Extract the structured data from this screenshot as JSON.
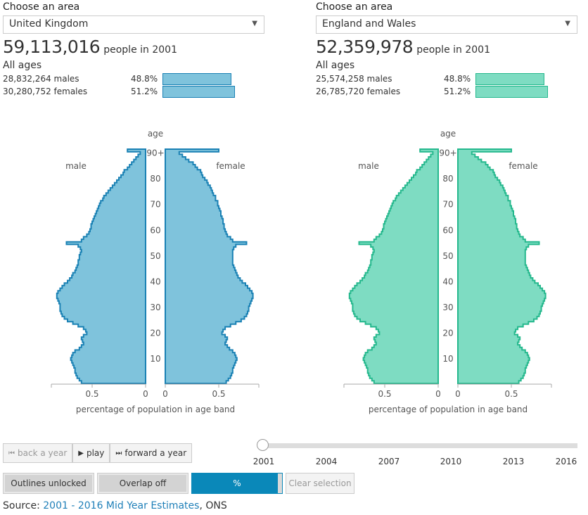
{
  "panels": [
    {
      "choose_label": "Choose an area",
      "area": "United Kingdom",
      "population": "59,113,016",
      "people_suffix": "people in 2001",
      "ages_label": "All ages",
      "males": "28,832,264 males",
      "males_pct": "48.8%",
      "females": "30,280,752 females",
      "females_pct": "51.2%",
      "fill": "#7fc3dc",
      "stroke": "#1a81b4"
    },
    {
      "choose_label": "Choose an area",
      "area": "England and Wales",
      "population": "52,359,978",
      "people_suffix": "people in 2001",
      "ages_label": "All ages",
      "males": "25,574,258 males",
      "males_pct": "48.8%",
      "females": "26,785,720 females",
      "females_pct": "51.2%",
      "fill": "#7edcc2",
      "stroke": "#25b88d"
    }
  ],
  "chart_data": [
    {
      "type": "bar",
      "title": "",
      "xlabel": "percentage of population in age band",
      "ylabel": "age",
      "left_label": "male",
      "right_label": "female",
      "ytick_labels": [
        "10",
        "20",
        "30",
        "40",
        "50",
        "60",
        "70",
        "80",
        "90+"
      ],
      "xtick_labels_left": [
        "0.5",
        "0"
      ],
      "xtick_labels_right": [
        "0",
        "0.5"
      ],
      "xlim": [
        0,
        0.9
      ],
      "series": [
        {
          "name": "male",
          "values": [
            0.6,
            0.62,
            0.64,
            0.65,
            0.66,
            0.66,
            0.67,
            0.68,
            0.69,
            0.7,
            0.69,
            0.68,
            0.66,
            0.62,
            0.6,
            0.58,
            0.59,
            0.6,
            0.58,
            0.55,
            0.56,
            0.58,
            0.63,
            0.68,
            0.73,
            0.76,
            0.78,
            0.79,
            0.8,
            0.8,
            0.8,
            0.81,
            0.82,
            0.83,
            0.83,
            0.82,
            0.8,
            0.78,
            0.76,
            0.73,
            0.71,
            0.69,
            0.68,
            0.66,
            0.65,
            0.64,
            0.63,
            0.63,
            0.62,
            0.62,
            0.61,
            0.6,
            0.61,
            0.63,
            0.74,
            0.6,
            0.58,
            0.55,
            0.53,
            0.52,
            0.51,
            0.51,
            0.5,
            0.49,
            0.48,
            0.47,
            0.46,
            0.45,
            0.44,
            0.43,
            0.42,
            0.4,
            0.39,
            0.37,
            0.35,
            0.33,
            0.31,
            0.29,
            0.27,
            0.25,
            0.23,
            0.21,
            0.2,
            0.17,
            0.15,
            0.13,
            0.11,
            0.09,
            0.07,
            0.05,
            0.17
          ]
        },
        {
          "name": "female",
          "values": [
            0.57,
            0.59,
            0.61,
            0.62,
            0.63,
            0.63,
            0.64,
            0.65,
            0.66,
            0.67,
            0.66,
            0.65,
            0.63,
            0.6,
            0.58,
            0.56,
            0.57,
            0.58,
            0.56,
            0.53,
            0.54,
            0.56,
            0.61,
            0.66,
            0.71,
            0.74,
            0.76,
            0.77,
            0.78,
            0.78,
            0.79,
            0.8,
            0.81,
            0.82,
            0.82,
            0.81,
            0.79,
            0.77,
            0.75,
            0.72,
            0.7,
            0.68,
            0.67,
            0.66,
            0.65,
            0.64,
            0.63,
            0.63,
            0.63,
            0.63,
            0.63,
            0.63,
            0.64,
            0.66,
            0.76,
            0.63,
            0.61,
            0.58,
            0.57,
            0.56,
            0.55,
            0.55,
            0.54,
            0.54,
            0.53,
            0.52,
            0.52,
            0.51,
            0.5,
            0.49,
            0.49,
            0.47,
            0.47,
            0.45,
            0.44,
            0.43,
            0.42,
            0.4,
            0.39,
            0.37,
            0.35,
            0.34,
            0.33,
            0.3,
            0.28,
            0.26,
            0.22,
            0.19,
            0.16,
            0.13,
            0.5
          ]
        }
      ]
    },
    {
      "type": "bar",
      "title": "",
      "xlabel": "percentage of population in age band",
      "ylabel": "age",
      "left_label": "male",
      "right_label": "female",
      "ytick_labels": [
        "10",
        "20",
        "30",
        "40",
        "50",
        "60",
        "70",
        "80",
        "90+"
      ],
      "xtick_labels_left": [
        "0.5",
        "0"
      ],
      "xtick_labels_right": [
        "0",
        "0.5"
      ],
      "xlim": [
        0,
        0.9
      ],
      "series": [
        {
          "name": "male",
          "values": [
            0.6,
            0.62,
            0.64,
            0.65,
            0.66,
            0.66,
            0.67,
            0.68,
            0.69,
            0.7,
            0.69,
            0.68,
            0.66,
            0.62,
            0.6,
            0.58,
            0.59,
            0.6,
            0.58,
            0.55,
            0.56,
            0.58,
            0.63,
            0.68,
            0.73,
            0.76,
            0.78,
            0.79,
            0.8,
            0.8,
            0.8,
            0.81,
            0.82,
            0.83,
            0.83,
            0.82,
            0.8,
            0.78,
            0.76,
            0.73,
            0.71,
            0.69,
            0.68,
            0.66,
            0.65,
            0.64,
            0.63,
            0.63,
            0.62,
            0.62,
            0.61,
            0.6,
            0.61,
            0.63,
            0.74,
            0.6,
            0.58,
            0.55,
            0.53,
            0.52,
            0.51,
            0.51,
            0.5,
            0.49,
            0.48,
            0.47,
            0.46,
            0.45,
            0.44,
            0.43,
            0.42,
            0.4,
            0.39,
            0.37,
            0.35,
            0.33,
            0.31,
            0.29,
            0.27,
            0.25,
            0.23,
            0.21,
            0.2,
            0.17,
            0.15,
            0.13,
            0.11,
            0.09,
            0.07,
            0.05,
            0.17
          ]
        },
        {
          "name": "female",
          "values": [
            0.57,
            0.59,
            0.61,
            0.62,
            0.63,
            0.63,
            0.64,
            0.65,
            0.66,
            0.67,
            0.66,
            0.65,
            0.63,
            0.6,
            0.58,
            0.56,
            0.57,
            0.58,
            0.56,
            0.53,
            0.54,
            0.56,
            0.61,
            0.66,
            0.71,
            0.74,
            0.76,
            0.77,
            0.78,
            0.78,
            0.79,
            0.8,
            0.81,
            0.82,
            0.82,
            0.81,
            0.79,
            0.77,
            0.75,
            0.72,
            0.7,
            0.68,
            0.67,
            0.66,
            0.65,
            0.64,
            0.63,
            0.63,
            0.63,
            0.63,
            0.63,
            0.63,
            0.64,
            0.66,
            0.76,
            0.63,
            0.61,
            0.58,
            0.57,
            0.56,
            0.55,
            0.55,
            0.54,
            0.54,
            0.53,
            0.52,
            0.52,
            0.51,
            0.5,
            0.49,
            0.49,
            0.47,
            0.47,
            0.45,
            0.44,
            0.43,
            0.42,
            0.4,
            0.39,
            0.37,
            0.35,
            0.34,
            0.33,
            0.3,
            0.28,
            0.26,
            0.22,
            0.19,
            0.16,
            0.13,
            0.5
          ]
        }
      ]
    }
  ],
  "controls": {
    "back": "back a year",
    "play": "play",
    "forward": "forward a year",
    "back_glyph": "⏮",
    "play_glyph": "▶",
    "forward_glyph": "⏭"
  },
  "slider": {
    "value": 2001,
    "years": [
      "2001",
      "2004",
      "2007",
      "2010",
      "2013",
      "2016"
    ]
  },
  "toggles": {
    "outlines": "Outlines unlocked",
    "overlap": "Overlap off",
    "percent": "%",
    "clear": "Clear selection"
  },
  "source": {
    "prefix": "Source: ",
    "link": "2001 - 2016 Mid Year Estimates",
    "suffix": ", ONS"
  }
}
